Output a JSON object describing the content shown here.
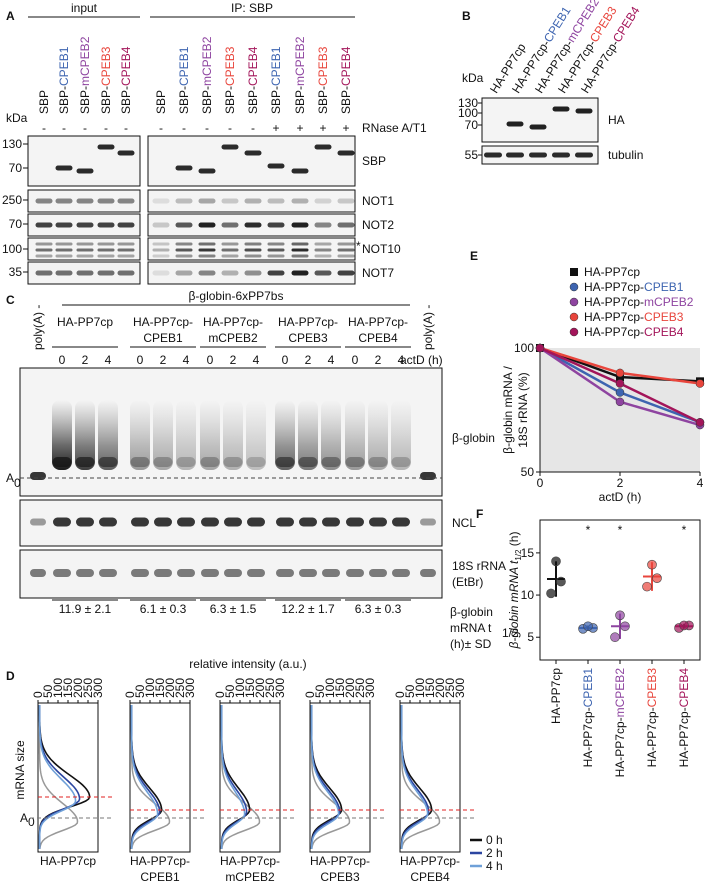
{
  "panels": {
    "A": {
      "letter": "A",
      "input_label": "input",
      "ip_label": "IP: SBP",
      "kda": "kDa",
      "rnase_label": "RNase A/T1",
      "asterisk": "*",
      "lanes": [
        {
          "name": "SBP",
          "rnase": "-",
          "color": "#111111"
        },
        {
          "name": "SBP-CPEB1",
          "rnase": "-",
          "color": "#3d64b0"
        },
        {
          "name": "SBP-mCPEB2",
          "rnase": "-",
          "color": "#8e44a0"
        },
        {
          "name": "SBP-CPEB3",
          "rnase": "-",
          "color": "#e8453c"
        },
        {
          "name": "SBP-CPEB4",
          "rnase": "-",
          "color": "#a3155a"
        },
        {
          "name": "SBP",
          "rnase": "-",
          "color": "#111111"
        },
        {
          "name": "SBP-CPEB1",
          "rnase": "-",
          "color": "#3d64b0"
        },
        {
          "name": "SBP-mCPEB2",
          "rnase": "-",
          "color": "#8e44a0"
        },
        {
          "name": "SBP-CPEB3",
          "rnase": "-",
          "color": "#e8453c"
        },
        {
          "name": "SBP-CPEB4",
          "rnase": "-",
          "color": "#a3155a"
        },
        {
          "name": "SBP-CPEB1",
          "rnase": "+",
          "color": "#3d64b0"
        },
        {
          "name": "SBP-mCPEB2",
          "rnase": "+",
          "color": "#8e44a0"
        },
        {
          "name": "SBP-CPEB3",
          "rnase": "+",
          "color": "#e8453c"
        },
        {
          "name": "SBP-CPEB4",
          "rnase": "+",
          "color": "#a3155a"
        }
      ],
      "blots": [
        {
          "label": "SBP",
          "markers": [
            "130",
            "70"
          ]
        },
        {
          "label": "NOT1",
          "markers": [
            "250"
          ]
        },
        {
          "label": "NOT2",
          "markers": [
            "70"
          ]
        },
        {
          "label": "NOT10",
          "markers": [
            "100"
          ]
        },
        {
          "label": "NOT7",
          "markers": [
            "35"
          ]
        }
      ]
    },
    "B": {
      "letter": "B",
      "kda": "kDa",
      "lanes": [
        {
          "name": "HA-PP7cp",
          "color": "#111111"
        },
        {
          "name": "HA-PP7cp-CPEB1",
          "color": "#3d64b0"
        },
        {
          "name": "HA-PP7cp-mCPEB2",
          "color": "#8e44a0"
        },
        {
          "name": "HA-PP7cp-CPEB3",
          "color": "#e8453c"
        },
        {
          "name": "HA-PP7cp-CPEB4",
          "color": "#a3155a"
        }
      ],
      "blots": [
        {
          "label": "HA",
          "markers": [
            "130",
            "100",
            "70"
          ]
        },
        {
          "label": "tubulin",
          "markers": [
            "55"
          ]
        }
      ]
    },
    "C": {
      "letter": "C",
      "construct": "β-globin-6xPP7bs",
      "polya": "poly(A) -",
      "times": [
        0,
        2,
        4
      ],
      "time_label": "actD (h)",
      "a0": "A",
      "a0_sub": "0",
      "blots": [
        "β-globin",
        "NCL"
      ],
      "rrna": [
        "18S rRNA",
        "(EtBr)"
      ],
      "groups": [
        {
          "lines": [
            "HA-PP7cp"
          ],
          "color": "#111111",
          "half_life": "11.9 ± 2.1"
        },
        {
          "lines": [
            "HA-PP7cp-",
            "CPEB1"
          ],
          "color": "#3d64b0",
          "half_life": "6.1 ± 0.3"
        },
        {
          "lines": [
            "HA-PP7cp-",
            "mCPEB2"
          ],
          "color": "#8e44a0",
          "half_life": "6.3 ± 1.5"
        },
        {
          "lines": [
            "HA-PP7cp-",
            "CPEB3"
          ],
          "color": "#e8453c",
          "half_life": "12.2 ± 1.7"
        },
        {
          "lines": [
            "HA-PP7cp-",
            "CPEB4"
          ],
          "color": "#a3155a",
          "half_life": "6.3 ± 0.3"
        }
      ],
      "half_life_label": {
        "first": "β-globin",
        "t": "mRNA t",
        "sub": "1/2",
        "last": "(h)± SD"
      }
    },
    "D": {
      "letter": "D",
      "axis_label": "relative intensity (a.u.)",
      "ticks": [
        0,
        50,
        100,
        150,
        200,
        250,
        300
      ],
      "y_label": "mRNA size",
      "a0": "A",
      "a0_sub": "0",
      "legend": [
        {
          "label": "0 h",
          "color": "#111111"
        },
        {
          "label": "2 h",
          "color": "#2b45a0"
        },
        {
          "label": "4 h",
          "color": "#6fa0d8"
        }
      ]
    }
  },
  "chart_data": [
    {
      "type": "line",
      "letter": "E",
      "x": [
        0,
        2,
        4
      ],
      "xlim": [
        0,
        4
      ],
      "xticks": [
        0,
        2,
        4
      ],
      "x_label": "actD (h)",
      "ylim": [
        50,
        100
      ],
      "yticks": [
        50,
        100
      ],
      "log_y": true,
      "y_label": [
        "β-globin mRNA /",
        "18S rRNA (%)"
      ],
      "series": [
        {
          "name": "HA-PP7cp",
          "color": "#111111",
          "marker": "square",
          "values": [
            100,
            85,
            83
          ]
        },
        {
          "name": "HA-PP7cp-CPEB1",
          "color": "#3d64b0",
          "marker": "circle",
          "values": [
            100,
            78,
            66
          ]
        },
        {
          "name": "HA-PP7cp-mCPEB2",
          "color": "#8e44a0",
          "marker": "circle",
          "values": [
            100,
            74,
            65
          ]
        },
        {
          "name": "HA-PP7cp-CPEB3",
          "color": "#e8453c",
          "marker": "circle",
          "values": [
            100,
            87,
            82
          ]
        },
        {
          "name": "HA-PP7cp-CPEB4",
          "color": "#a3155a",
          "marker": "circle",
          "values": [
            100,
            82,
            66
          ]
        }
      ]
    },
    {
      "type": "dotplot",
      "letter": "F",
      "categories": [
        "HA-PP7cp",
        "HA-PP7cp-CPEB1",
        "HA-PP7cp-mCPEB2",
        "HA-PP7cp-CPEB3",
        "HA-PP7cp-CPEB4"
      ],
      "colors": [
        "#111111",
        "#3d64b0",
        "#8e44a0",
        "#e8453c",
        "#a3155a"
      ],
      "points": [
        [
          10.2,
          11.6,
          14.0
        ],
        [
          6.0,
          6.1,
          6.3
        ],
        [
          5.0,
          6.3,
          7.6
        ],
        [
          11.0,
          12.0,
          13.6
        ],
        [
          6.1,
          6.4,
          6.4
        ]
      ],
      "means": [
        11.9,
        6.1,
        6.3,
        12.2,
        6.3
      ],
      "sd": [
        2.1,
        0.3,
        1.5,
        1.7,
        0.3
      ],
      "significance": [
        null,
        "*",
        "*",
        null,
        "*"
      ],
      "ylim": [
        2.3,
        18.9
      ],
      "yticks": [
        5,
        10,
        15
      ],
      "y_label": [
        "β-globin mRNA t",
        "1/2",
        " (h)"
      ]
    }
  ]
}
